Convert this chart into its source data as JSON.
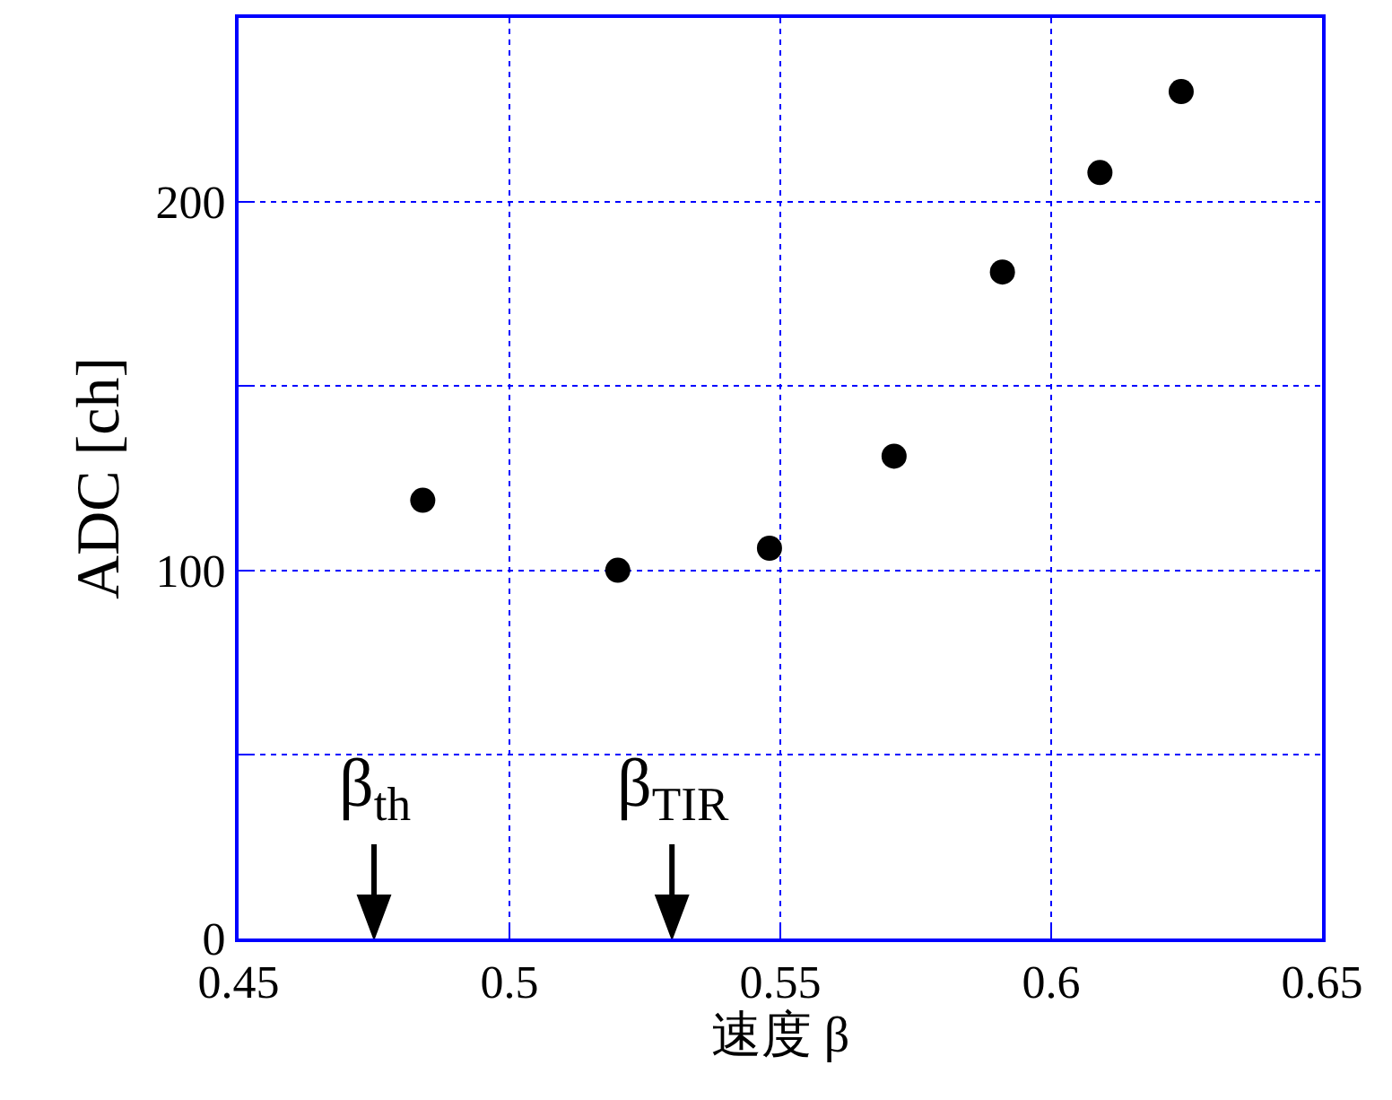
{
  "chart_data": {
    "type": "scatter",
    "xlabel": "速度 β",
    "ylabel": "ADC [ch]",
    "x": [
      0.484,
      0.52,
      0.548,
      0.571,
      0.591,
      0.609,
      0.624
    ],
    "series": [
      {
        "color": "#000000",
        "values": [
          119,
          100,
          106,
          131,
          181,
          208,
          230
        ]
      }
    ],
    "xlim": [
      0.45,
      0.65
    ],
    "xticks": [
      0.45,
      0.5,
      0.55,
      0.6,
      0.65
    ],
    "ylim": [
      0,
      250
    ],
    "yticks": [
      0,
      {
        "value": 50,
        "label": null
      },
      100,
      {
        "value": 150,
        "label": null
      },
      200
    ],
    "grid": true,
    "marker": "circle",
    "ref_lines": [
      {
        "axis": "x",
        "value": 0.475,
        "label": "β$_{th}$",
        "color": "#000000"
      },
      {
        "axis": "x",
        "value": 0.53,
        "label": "β$_{TIR}$",
        "color": "#000000"
      }
    ]
  }
}
